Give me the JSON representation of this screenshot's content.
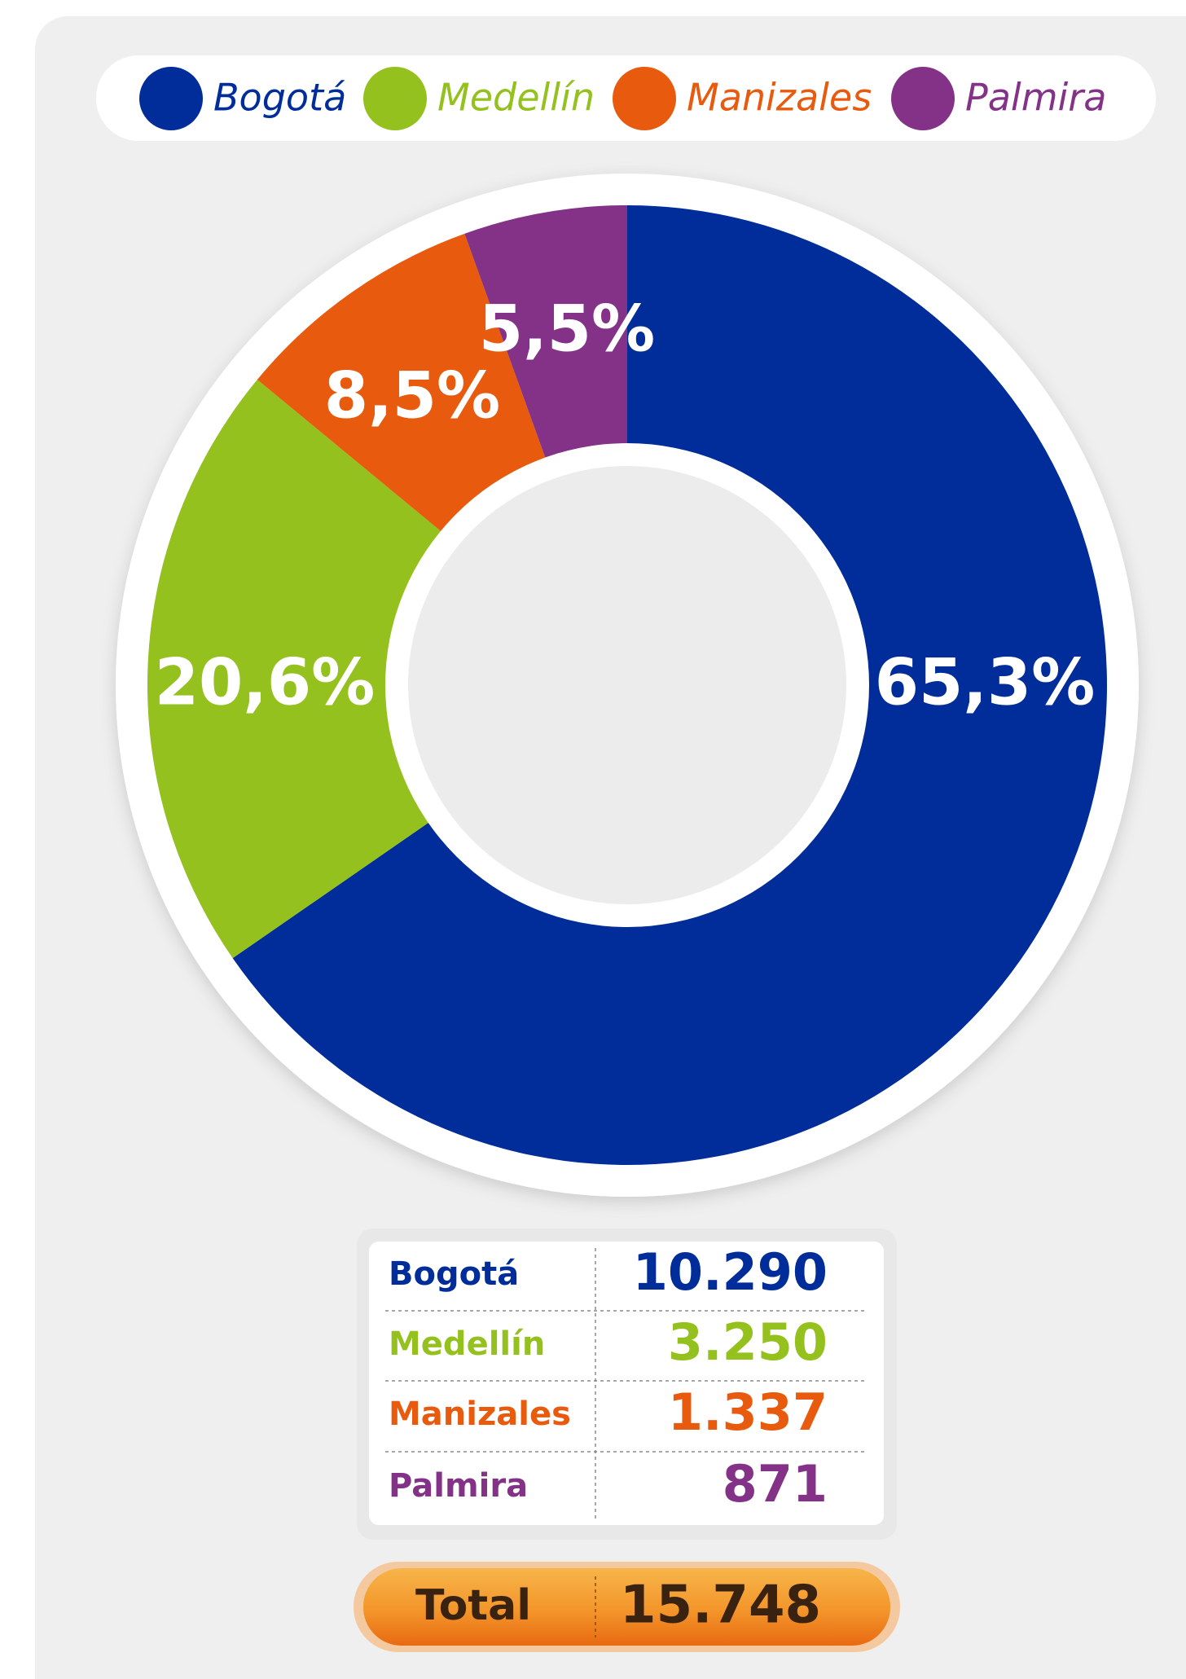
{
  "chart_data": {
    "type": "pie",
    "categories": [
      "Bogotá",
      "Medellín",
      "Manizales",
      "Palmira"
    ],
    "values": [
      65.3,
      20.6,
      8.5,
      5.5
    ],
    "value_labels": [
      "65,3%",
      "20,6%",
      "8,5%",
      "5,5%"
    ],
    "colors": [
      "#002d9a",
      "#95c11f",
      "#e85b0e",
      "#833288"
    ],
    "legend": "top"
  },
  "table": {
    "rows": [
      [
        "Bogotá",
        "10.290"
      ],
      [
        "Medellín",
        "3.250"
      ],
      [
        "Manizales",
        "1.337"
      ],
      [
        "Palmira",
        "871"
      ]
    ],
    "total": [
      "Total",
      "15.748"
    ]
  }
}
